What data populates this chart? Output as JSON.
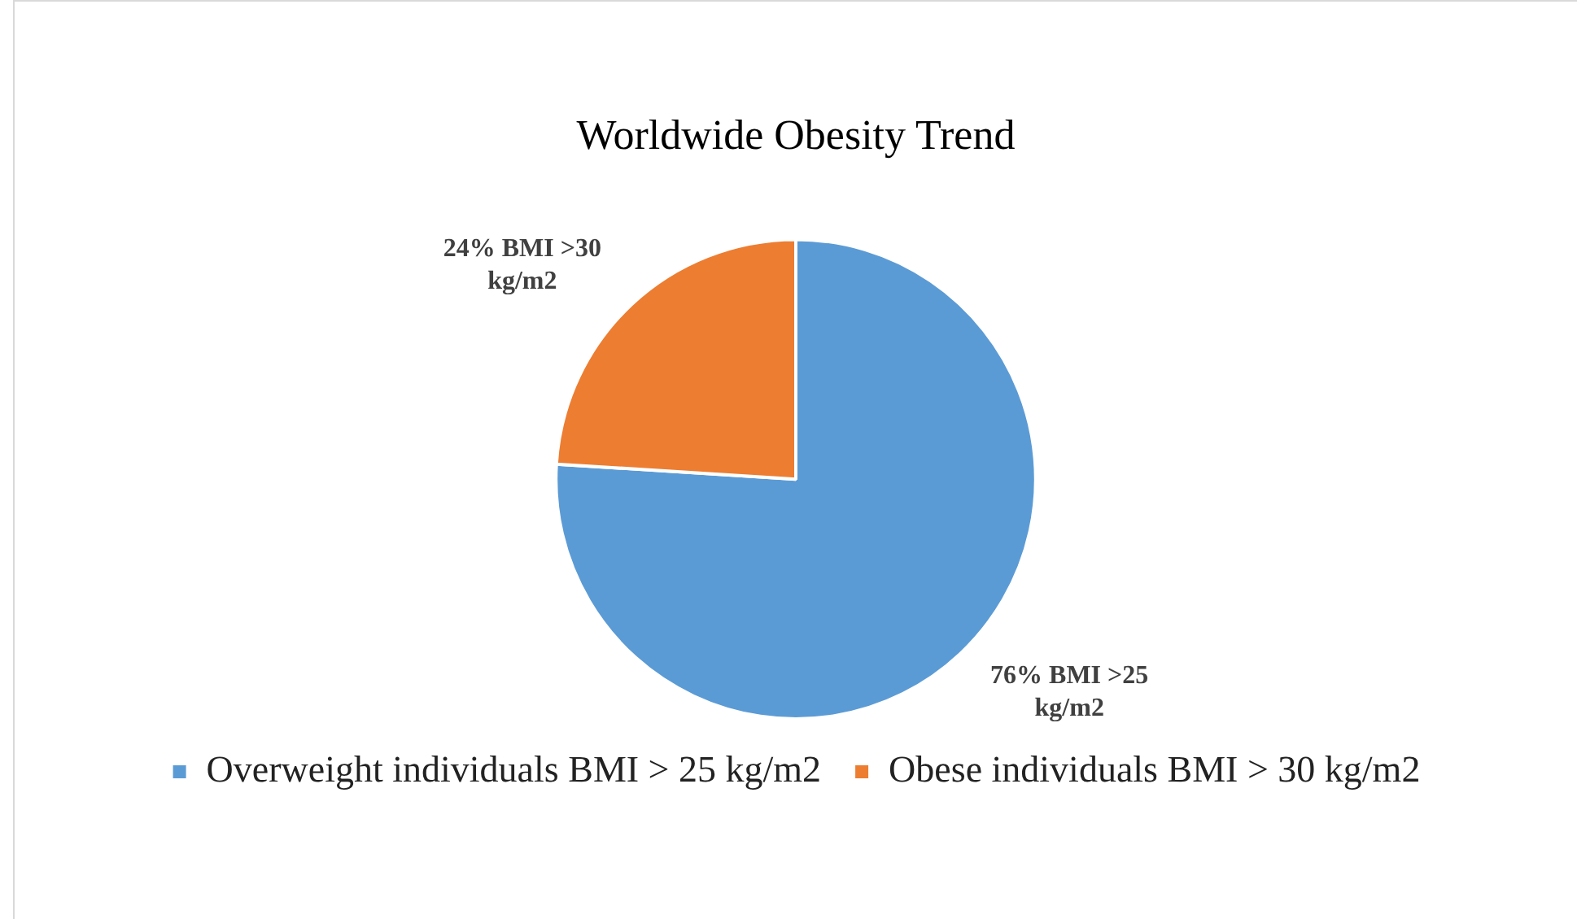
{
  "chart_data": {
    "type": "pie",
    "title": "Worldwide Obesity Trend",
    "categories": [
      "Overweight individuals BMI > 25 kg/m2",
      "Obese individuals BMI > 30 kg/m2"
    ],
    "values": [
      76,
      24
    ],
    "colors": [
      "#5b9bd5",
      "#ed7d31"
    ],
    "value_labels": [
      "76% BMI >25 kg/m2",
      "24% BMI >30 kg/m2"
    ],
    "legend": "bottom"
  }
}
